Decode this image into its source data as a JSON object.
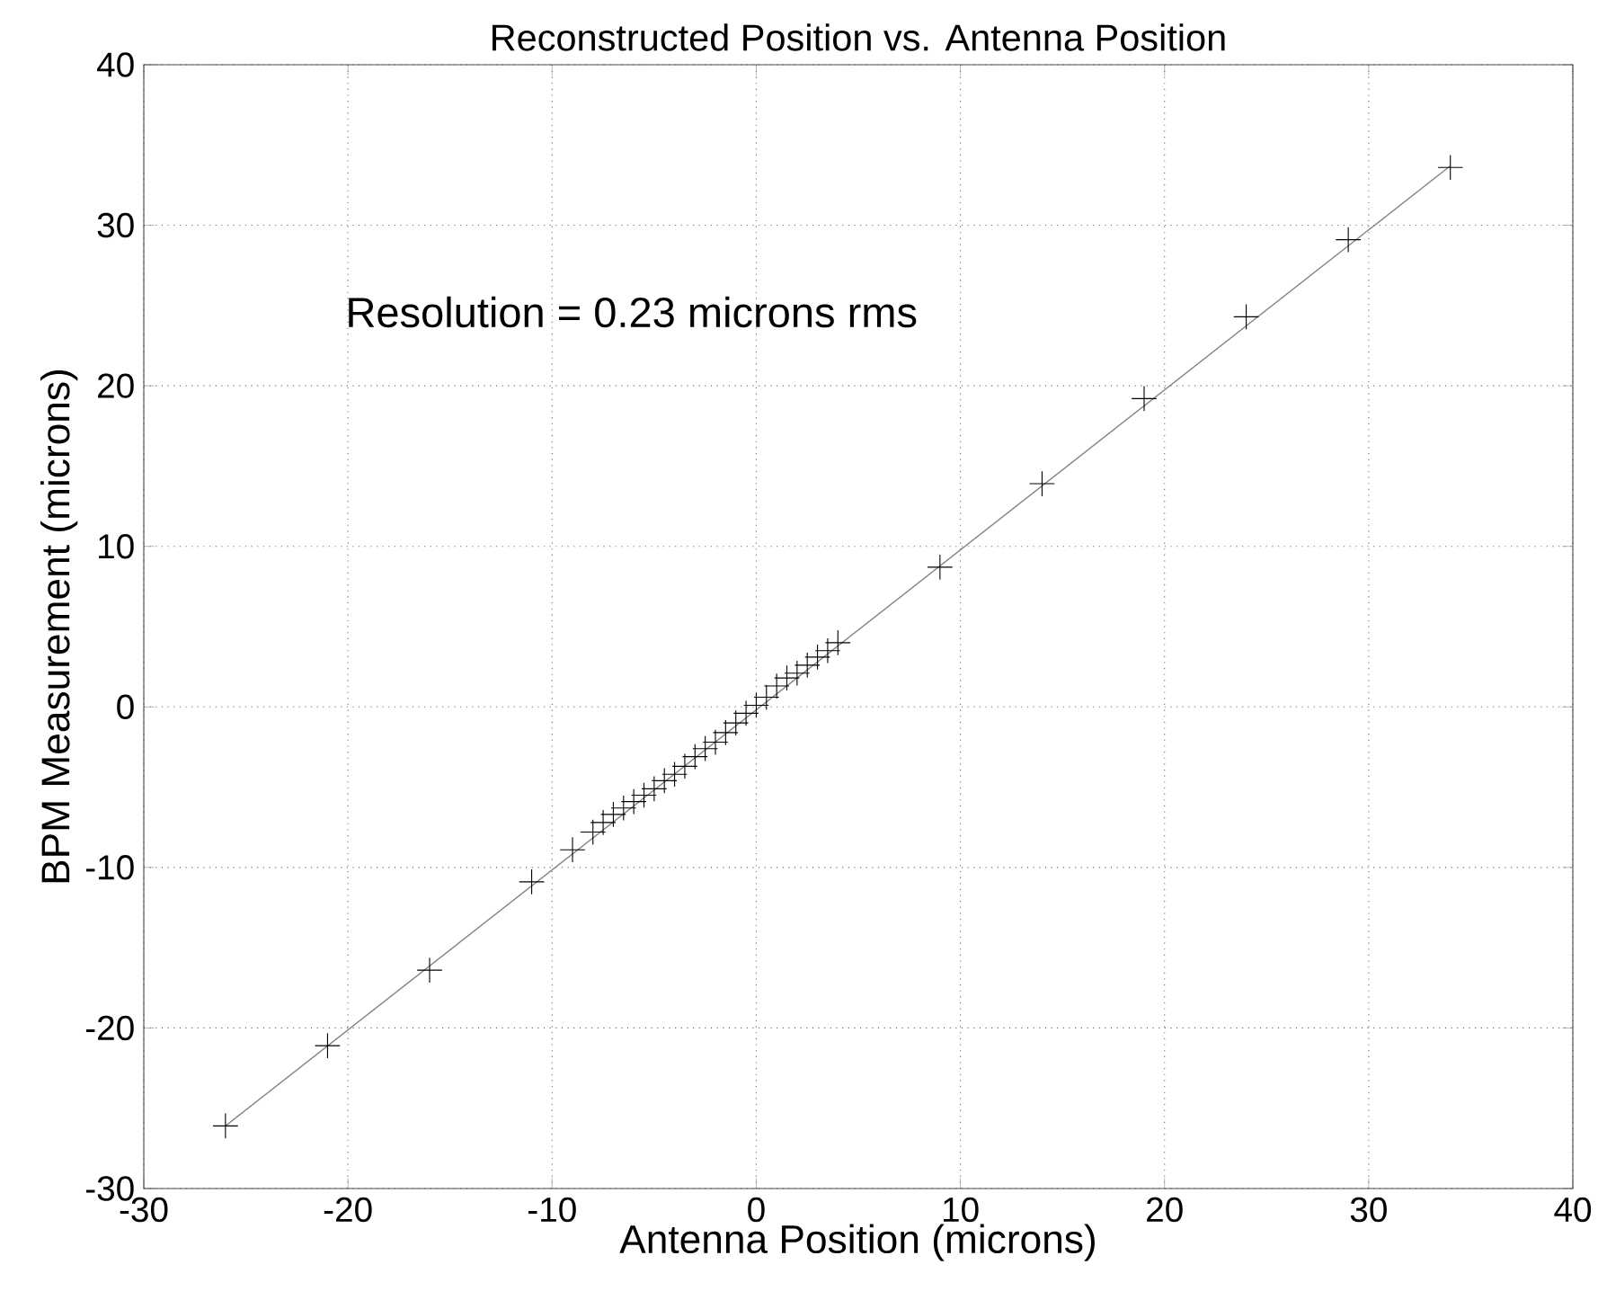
{
  "chart_data": {
    "type": "scatter",
    "title": "Reconstructed Position vs. Antenna Position",
    "xlabel": "Antenna Position (microns)",
    "ylabel": "BPM Measurement (microns)",
    "annotations": [
      "Resolution = 0.23 microns rms"
    ],
    "xlim": [
      -30,
      40
    ],
    "ylim": [
      -30,
      40
    ],
    "xticks": [
      -30,
      -20,
      -10,
      0,
      10,
      20,
      30,
      40
    ],
    "yticks": [
      -30,
      -20,
      -10,
      0,
      10,
      20,
      30,
      40
    ],
    "grid": true,
    "series": [
      {
        "marker": "cross",
        "color": "#000000",
        "x": [
          -26,
          -21,
          -16,
          -11,
          -9,
          -8,
          -7.5,
          -7,
          -6.5,
          -6,
          -5.5,
          -5,
          -4.5,
          -4,
          -3.5,
          -3,
          -2.5,
          -2,
          -1.5,
          -1,
          -0.5,
          0,
          0.5,
          1,
          1.5,
          2,
          2.5,
          3,
          3.5,
          4,
          9,
          14,
          19,
          24,
          29,
          34
        ],
        "values": [
          -26.1,
          -21.1,
          -16.4,
          -10.9,
          -8.9,
          -7.8,
          -7.2,
          -6.7,
          -6.3,
          -5.9,
          -5.5,
          -5.1,
          -4.6,
          -4.2,
          -3.7,
          -3.1,
          -2.6,
          -2.2,
          -1.6,
          -1.0,
          -0.4,
          0.1,
          0.6,
          1.3,
          1.8,
          2.1,
          2.6,
          3.1,
          3.5,
          4.0,
          8.7,
          13.9,
          19.2,
          24.3,
          29.1,
          33.6
        ]
      },
      {
        "type": "line",
        "color": "#808080",
        "x": [
          -26,
          34
        ],
        "values": [
          -26.1,
          33.7
        ]
      }
    ]
  }
}
